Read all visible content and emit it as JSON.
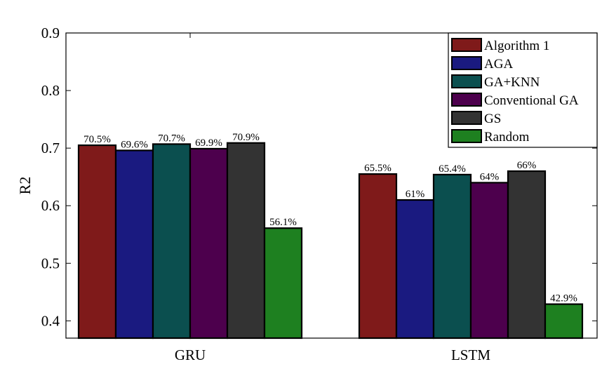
{
  "chart_data": {
    "type": "bar",
    "categories": [
      "GRU",
      "LSTM"
    ],
    "series": [
      {
        "name": "Algorithm 1",
        "values": [
          0.705,
          0.655
        ],
        "labels": [
          "70.5%",
          "65.5%"
        ],
        "color": "#7f1a1a"
      },
      {
        "name": "AGA",
        "values": [
          0.696,
          0.61
        ],
        "labels": [
          "69.6%",
          "61%"
        ],
        "color": "#1a1a80"
      },
      {
        "name": "GA+KNN",
        "values": [
          0.707,
          0.654
        ],
        "labels": [
          "70.7%",
          "65.4%"
        ],
        "color": "#0b4f4f"
      },
      {
        "name": "Conventional GA",
        "values": [
          0.699,
          0.64
        ],
        "labels": [
          "69.9%",
          "64%"
        ],
        "color": "#4d004d"
      },
      {
        "name": "GS",
        "values": [
          0.709,
          0.66
        ],
        "labels": [
          "70.9%",
          "66%"
        ],
        "color": "#333333"
      },
      {
        "name": "Random",
        "values": [
          0.561,
          0.429
        ],
        "labels": [
          "56.1%",
          "42.9%"
        ],
        "color": "#1e8020"
      }
    ],
    "ylabel": "R2",
    "xlabel": "",
    "ylim": [
      0.37,
      0.9
    ],
    "yticks": [
      0.4,
      0.5,
      0.6,
      0.7,
      0.8,
      0.9
    ],
    "ytick_labels": [
      "0.4",
      "0.5",
      "0.6",
      "0.7",
      "0.8",
      "0.9"
    ],
    "grid": false,
    "legend_position": "top-right"
  }
}
